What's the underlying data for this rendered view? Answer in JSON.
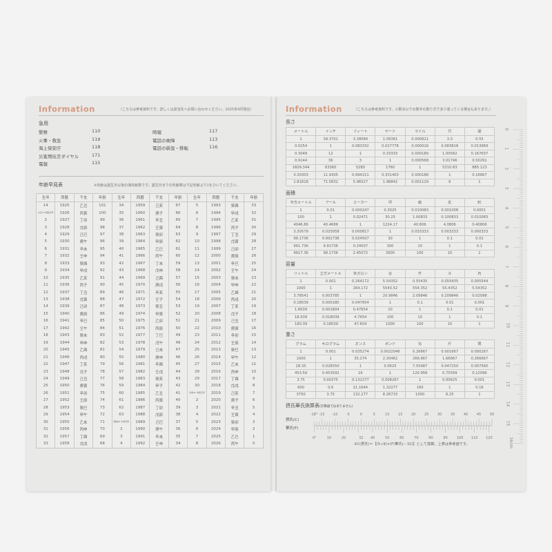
{
  "left": {
    "title": "Information",
    "note": "（こちらは参考資料です。詳しくは該当先へお問い合わせください。2025年4月現在）",
    "emergency": {
      "heading": "急用",
      "items_left": [
        {
          "label": "警察",
          "number": "110"
        },
        {
          "label": "火事・救急",
          "number": "119"
        },
        {
          "label": "海上保安庁",
          "number": "118"
        },
        {
          "label": "災害用伝言ダイヤル",
          "number": "171"
        },
        {
          "label": "電報",
          "number": "115"
        }
      ],
      "items_right": [
        {
          "label": "時報",
          "number": "117"
        },
        {
          "label": "電話の故障",
          "number": "113"
        },
        {
          "label": "電話の新設・移転",
          "number": "116"
        }
      ]
    },
    "age_table": {
      "heading": "年齢早見表",
      "note": "※年齢は誕生日以後の満年齢数です。誕生日までの年齢数は下記年齢より1をひいてください。",
      "headers": [
        "生年",
        "西暦",
        "干支",
        "年齢",
        "生年",
        "西暦",
        "干支",
        "年齢",
        "生年",
        "西暦",
        "干支",
        "年齢"
      ],
      "rows": [
        [
          "14",
          "1925",
          "乙丑",
          "101",
          "34",
          "1959",
          "己亥",
          "67",
          "5",
          "1993",
          "癸酉",
          "33"
        ],
        [
          "大正15 昭和元年",
          "1926",
          "丙寅",
          "100",
          "35",
          "1960",
          "庚子",
          "66",
          "6",
          "1994",
          "甲戌",
          "32"
        ],
        [
          "2",
          "1927",
          "丁卯",
          "99",
          "36",
          "1961",
          "辛丑",
          "65",
          "7",
          "1995",
          "乙亥",
          "31"
        ],
        [
          "3",
          "1928",
          "戊辰",
          "98",
          "37",
          "1962",
          "壬寅",
          "64",
          "8",
          "1996",
          "丙子",
          "30"
        ],
        [
          "4",
          "1929",
          "己巳",
          "97",
          "38",
          "1963",
          "癸卯",
          "63",
          "9",
          "1997",
          "丁丑",
          "29"
        ],
        [
          "5",
          "1930",
          "庚午",
          "96",
          "39",
          "1964",
          "甲辰",
          "62",
          "10",
          "1998",
          "戊寅",
          "28"
        ],
        [
          "6",
          "1931",
          "辛未",
          "95",
          "40",
          "1965",
          "乙巳",
          "61",
          "11",
          "1999",
          "己卯",
          "27"
        ],
        [
          "7",
          "1932",
          "壬申",
          "94",
          "41",
          "1966",
          "丙午",
          "60",
          "12",
          "2000",
          "庚辰",
          "26"
        ],
        [
          "8",
          "1933",
          "癸酉",
          "93",
          "42",
          "1967",
          "丁未",
          "59",
          "13",
          "2001",
          "辛巳",
          "25"
        ],
        [
          "9",
          "1934",
          "甲戌",
          "92",
          "43",
          "1968",
          "戊申",
          "58",
          "14",
          "2002",
          "壬午",
          "24"
        ],
        [
          "10",
          "1935",
          "乙亥",
          "91",
          "44",
          "1969",
          "己酉",
          "57",
          "15",
          "2003",
          "癸未",
          "23"
        ],
        [
          "11",
          "1936",
          "丙子",
          "90",
          "45",
          "1970",
          "庚戌",
          "56",
          "16",
          "2004",
          "甲申",
          "22"
        ],
        [
          "12",
          "1937",
          "丁丑",
          "89",
          "46",
          "1971",
          "辛亥",
          "55",
          "17",
          "2005",
          "乙酉",
          "21"
        ],
        [
          "13",
          "1938",
          "戊寅",
          "88",
          "47",
          "1972",
          "壬子",
          "54",
          "18",
          "2006",
          "丙戌",
          "20"
        ],
        [
          "14",
          "1939",
          "己卯",
          "87",
          "48",
          "1973",
          "癸丑",
          "53",
          "19",
          "2007",
          "丁亥",
          "19"
        ],
        [
          "15",
          "1940",
          "庚辰",
          "86",
          "49",
          "1974",
          "甲寅",
          "52",
          "20",
          "2008",
          "戊子",
          "18"
        ],
        [
          "16",
          "1941",
          "辛巳",
          "85",
          "50",
          "1975",
          "乙卯",
          "51",
          "21",
          "2009",
          "己丑",
          "17"
        ],
        [
          "17",
          "1942",
          "壬午",
          "84",
          "51",
          "1976",
          "丙辰",
          "50",
          "22",
          "2010",
          "庚寅",
          "16"
        ],
        [
          "18",
          "1943",
          "癸未",
          "83",
          "52",
          "1977",
          "丁巳",
          "49",
          "23",
          "2011",
          "辛卯",
          "15"
        ],
        [
          "19",
          "1944",
          "甲申",
          "82",
          "53",
          "1978",
          "戊午",
          "48",
          "24",
          "2012",
          "壬辰",
          "14"
        ],
        [
          "20",
          "1945",
          "乙酉",
          "81",
          "54",
          "1979",
          "己未",
          "47",
          "25",
          "2013",
          "癸巳",
          "13"
        ],
        [
          "21",
          "1946",
          "丙戌",
          "80",
          "55",
          "1980",
          "庚申",
          "46",
          "26",
          "2014",
          "甲午",
          "12"
        ],
        [
          "22",
          "1947",
          "丁亥",
          "79",
          "56",
          "1981",
          "辛酉",
          "45",
          "27",
          "2015",
          "乙未",
          "11"
        ],
        [
          "23",
          "1948",
          "戊子",
          "78",
          "57",
          "1982",
          "壬戌",
          "44",
          "28",
          "2016",
          "丙申",
          "10"
        ],
        [
          "24",
          "1949",
          "己丑",
          "77",
          "58",
          "1983",
          "癸亥",
          "43",
          "29",
          "2017",
          "丁酉",
          "9"
        ],
        [
          "25",
          "1950",
          "庚寅",
          "76",
          "59",
          "1984",
          "甲子",
          "42",
          "30",
          "2018",
          "戊戌",
          "8"
        ],
        [
          "26",
          "1951",
          "辛卯",
          "75",
          "60",
          "1985",
          "乙丑",
          "41",
          "平成31 令和元年",
          "2019",
          "己亥",
          "7"
        ],
        [
          "27",
          "1952",
          "壬辰",
          "74",
          "61",
          "1986",
          "丙寅",
          "40",
          "2",
          "2020",
          "庚子",
          "6"
        ],
        [
          "28",
          "1953",
          "癸巳",
          "73",
          "62",
          "1987",
          "丁卯",
          "39",
          "3",
          "2021",
          "辛丑",
          "5"
        ],
        [
          "29",
          "1954",
          "甲午",
          "72",
          "63",
          "1988",
          "戊辰",
          "38",
          "4",
          "2022",
          "壬寅",
          "4"
        ],
        [
          "30",
          "1955",
          "乙未",
          "71",
          "昭和64 平成元年",
          "1989",
          "己巳",
          "37",
          "5",
          "2023",
          "癸卯",
          "3"
        ],
        [
          "31",
          "1956",
          "丙申",
          "70",
          "2",
          "1990",
          "庚午",
          "36",
          "6",
          "2024",
          "甲辰",
          "2"
        ],
        [
          "32",
          "1957",
          "丁酉",
          "69",
          "3",
          "1991",
          "辛未",
          "35",
          "7",
          "2025",
          "乙巳",
          "1"
        ],
        [
          "33",
          "1958",
          "戊戌",
          "68",
          "4",
          "1992",
          "壬申",
          "34",
          "8",
          "2026",
          "丙午",
          "0"
        ]
      ]
    }
  },
  "right": {
    "title": "Information",
    "note": "（こちらは参考資料です。小数点以下の数字の取り方で多少違ってくる場合もあります。）",
    "tables": [
      {
        "heading": "長さ",
        "headers": [
          "メートル",
          "インチ",
          "フィート",
          "ヤード",
          "マイル",
          "尺",
          "間"
        ],
        "rows": [
          [
            "1",
            "39.3701",
            "3.28084",
            "1.09361",
            "0.000621",
            "3.3",
            "0.55"
          ],
          [
            "0.0254",
            "1",
            "0.083332",
            "0.027778",
            "0.000016",
            "0.083818",
            "0.013969"
          ],
          [
            "0.3048",
            "12",
            "1",
            "0.33333",
            "0.000189",
            "1.00582",
            "0.167637"
          ],
          [
            "0.9144",
            "36",
            "3",
            "1",
            "0.000568",
            "3.01746",
            "0.50291"
          ],
          [
            "1609.344",
            "63360",
            "5280",
            "1760",
            "1",
            "5310.83",
            "885.123"
          ],
          [
            "0.30303",
            "11.9305",
            "0.994211",
            "0.331403",
            "0.000188",
            "1",
            "0.16667"
          ],
          [
            "1.81818",
            "71.5832",
            "5.96527",
            "1.98842",
            "0.001129",
            "6",
            "1"
          ]
        ]
      },
      {
        "heading": "面積",
        "headers": [
          "平方メートル",
          "アール",
          "エーカー",
          "坪",
          "畝",
          "反",
          "町"
        ],
        "rows": [
          [
            "1",
            "0.01",
            "0.000247",
            "0.3025",
            "0.010083",
            "0.001008",
            "0.0001"
          ],
          [
            "100",
            "1",
            "0.02471",
            "30.25",
            "1.00833",
            "0.100833",
            "0.010083"
          ],
          [
            "4046.86",
            "40.4686",
            "1",
            "1224.17",
            "40.806",
            "4.0806",
            "0.40806"
          ],
          [
            "3.30579",
            "0.033058",
            "0.000817",
            "1",
            "0.033333",
            "0.003333",
            "0.000333"
          ],
          [
            "99.1736",
            "0.991736",
            "0.024507",
            "30",
            "1",
            "0.1",
            "0.01"
          ],
          [
            "991.736",
            "9.91736",
            "0.24507",
            "300",
            "10",
            "1",
            "0.1"
          ],
          [
            "9917.36",
            "99.1736",
            "2.45072",
            "3000",
            "100",
            "10",
            "1"
          ]
        ]
      },
      {
        "heading": "容量",
        "headers": [
          "リットル",
          "立方メートル",
          "米ガロン",
          "合",
          "升",
          "斗",
          "石"
        ],
        "rows": [
          [
            "1",
            "0.001",
            "0.264172",
            "5.54352",
            "0.55435",
            "0.055435",
            "0.005544"
          ],
          [
            "1000",
            "1",
            "264.172",
            "5543.52",
            "554.352",
            "55.4352",
            "5.54352"
          ],
          [
            "3.78541",
            "0.003785",
            "1",
            "20.9846",
            "2.09846",
            "0.209846",
            "0.02098"
          ],
          [
            "0.18039",
            "0.000180",
            "0.047654",
            "1",
            "0.1",
            "0.01",
            "0.001"
          ],
          [
            "1.8039",
            "0.001804",
            "0.47654",
            "10",
            "1",
            "0.1",
            "0.01"
          ],
          [
            "18.039",
            "0.018039",
            "4.7654",
            "100",
            "10",
            "1",
            "0.1"
          ],
          [
            "180.39",
            "0.18039",
            "47.654",
            "1000",
            "100",
            "10",
            "1"
          ]
        ]
      },
      {
        "heading": "重さ",
        "headers": [
          "グラム",
          "キログラム",
          "オンス",
          "ポンド",
          "匁",
          "斤",
          "貫"
        ],
        "rows": [
          [
            "1",
            "0.001",
            "0.035274",
            "0.0022046",
            "0.26667",
            "0.001667",
            "0.000267"
          ],
          [
            "1000",
            "1",
            "35.274",
            "2.20462",
            "266.667",
            "1.66667",
            "0.266667"
          ],
          [
            "28.35",
            "0.028350",
            "1",
            "0.0625",
            "7.55987",
            "0.047250",
            "0.007560"
          ],
          [
            "453.59",
            "0.453592",
            "16",
            "1",
            "120.958",
            "0.75599",
            "0.12096"
          ],
          [
            "3.75",
            "0.00375",
            "0.132277",
            "0.008267",
            "1",
            "0.00625",
            "0.001"
          ],
          [
            "600",
            "0.6",
            "21.1644",
            "1.32277",
            "160",
            "1",
            "0.16"
          ],
          [
            "3750",
            "3.75",
            "132.277",
            "8.26733",
            "1000",
            "6.25",
            "1"
          ]
        ]
      }
    ],
    "temperature": {
      "heading": "摂氏華氏換算表",
      "subheading": "(計算器ではありません)",
      "celsius_label": "摂氏(C)",
      "fahrenheit_label": "華氏(F)",
      "celsius_ticks": [
        "-18°",
        "-15",
        "-10",
        "-5",
        "0",
        "5",
        "10",
        "15",
        "20",
        "25",
        "30",
        "35",
        "40",
        "45",
        "50"
      ],
      "fahrenheit_ticks": [
        "0°",
        "10",
        "20",
        "32",
        "40",
        "50",
        "60",
        "70",
        "80",
        "90",
        "100",
        "110",
        "120"
      ],
      "formula": "※C(摂氏)＝【(5÷9)×(F(華氏)－32)】として換算。上表は参考値です。"
    },
    "ruler": {
      "labels": [
        "0",
        "1",
        "2",
        "3",
        "4",
        "5",
        "6",
        "7",
        "8",
        "9",
        "10",
        "11",
        "12",
        "13",
        "14",
        "15",
        "16cm"
      ]
    }
  },
  "colors": {
    "accent": "#d49a80",
    "page": "#e9e9e8"
  }
}
